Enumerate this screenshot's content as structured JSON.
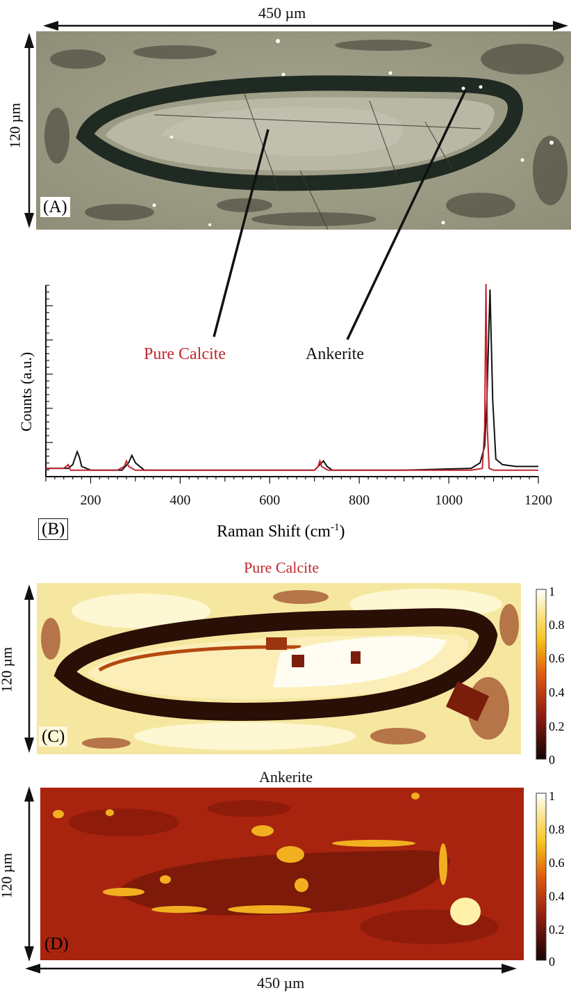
{
  "figure": {
    "panel_a": {
      "letter": "(A)",
      "width_label": "450 µm",
      "height_label": "120 µm"
    },
    "panel_b": {
      "letter": "(B)",
      "xlabel_main": "Raman Shift (cm",
      "xlabel_sup": "-1",
      "xlabel_close": ")",
      "ylabel": "Counts (a.u.)",
      "xtick_labels": [
        "200",
        "400",
        "600",
        "800",
        "1000",
        "1200"
      ],
      "label_calcite": "Pure Calcite",
      "label_ankerite": "Ankerite"
    },
    "panel_c": {
      "letter": "(C)",
      "title": "Pure Calcite",
      "height_label": "120 µm",
      "colorbar_ticks": [
        "1",
        "0.8",
        "0.6",
        "0.4",
        "0.2",
        "0"
      ]
    },
    "panel_d": {
      "letter": "(D)",
      "title": "Ankerite",
      "height_label": "120 µm",
      "width_label": "450 µm",
      "colorbar_ticks": [
        "1",
        "0.8",
        "0.6",
        "0.4",
        "0.2",
        "0"
      ]
    }
  },
  "colors": {
    "calcite": "#c0272d",
    "ankerite": "#111111"
  },
  "chart_data": {
    "type": "line",
    "xlabel": "Raman Shift (cm-1)",
    "ylabel": "Counts (a.u.)",
    "xlim": [
      100,
      1200
    ],
    "series": [
      {
        "name": "Pure Calcite",
        "x": [
          100,
          140,
          150,
          155,
          165,
          200,
          260,
          275,
          280,
          285,
          300,
          400,
          600,
          700,
          708,
          712,
          716,
          730,
          900,
          1050,
          1075,
          1080,
          1083,
          1086,
          1090,
          1100,
          1150,
          1200
        ],
        "y": [
          0.03,
          0.03,
          0.05,
          0.02,
          0.02,
          0.02,
          0.02,
          0.04,
          0.07,
          0.04,
          0.02,
          0.02,
          0.02,
          0.02,
          0.04,
          0.07,
          0.04,
          0.02,
          0.02,
          0.02,
          0.03,
          0.25,
          1.03,
          0.25,
          0.03,
          0.02,
          0.02,
          0.02
        ]
      },
      {
        "name": "Ankerite",
        "x": [
          100,
          150,
          160,
          170,
          175,
          180,
          200,
          270,
          285,
          292,
          300,
          320,
          400,
          600,
          700,
          712,
          720,
          728,
          740,
          900,
          1050,
          1070,
          1080,
          1085,
          1092,
          1098,
          1105,
          1120,
          1150,
          1200
        ],
        "y": [
          0.03,
          0.03,
          0.05,
          0.12,
          0.09,
          0.04,
          0.02,
          0.02,
          0.06,
          0.1,
          0.06,
          0.02,
          0.02,
          0.02,
          0.02,
          0.05,
          0.07,
          0.04,
          0.02,
          0.02,
          0.03,
          0.06,
          0.15,
          0.4,
          1.0,
          0.4,
          0.08,
          0.05,
          0.04,
          0.04
        ]
      }
    ]
  }
}
